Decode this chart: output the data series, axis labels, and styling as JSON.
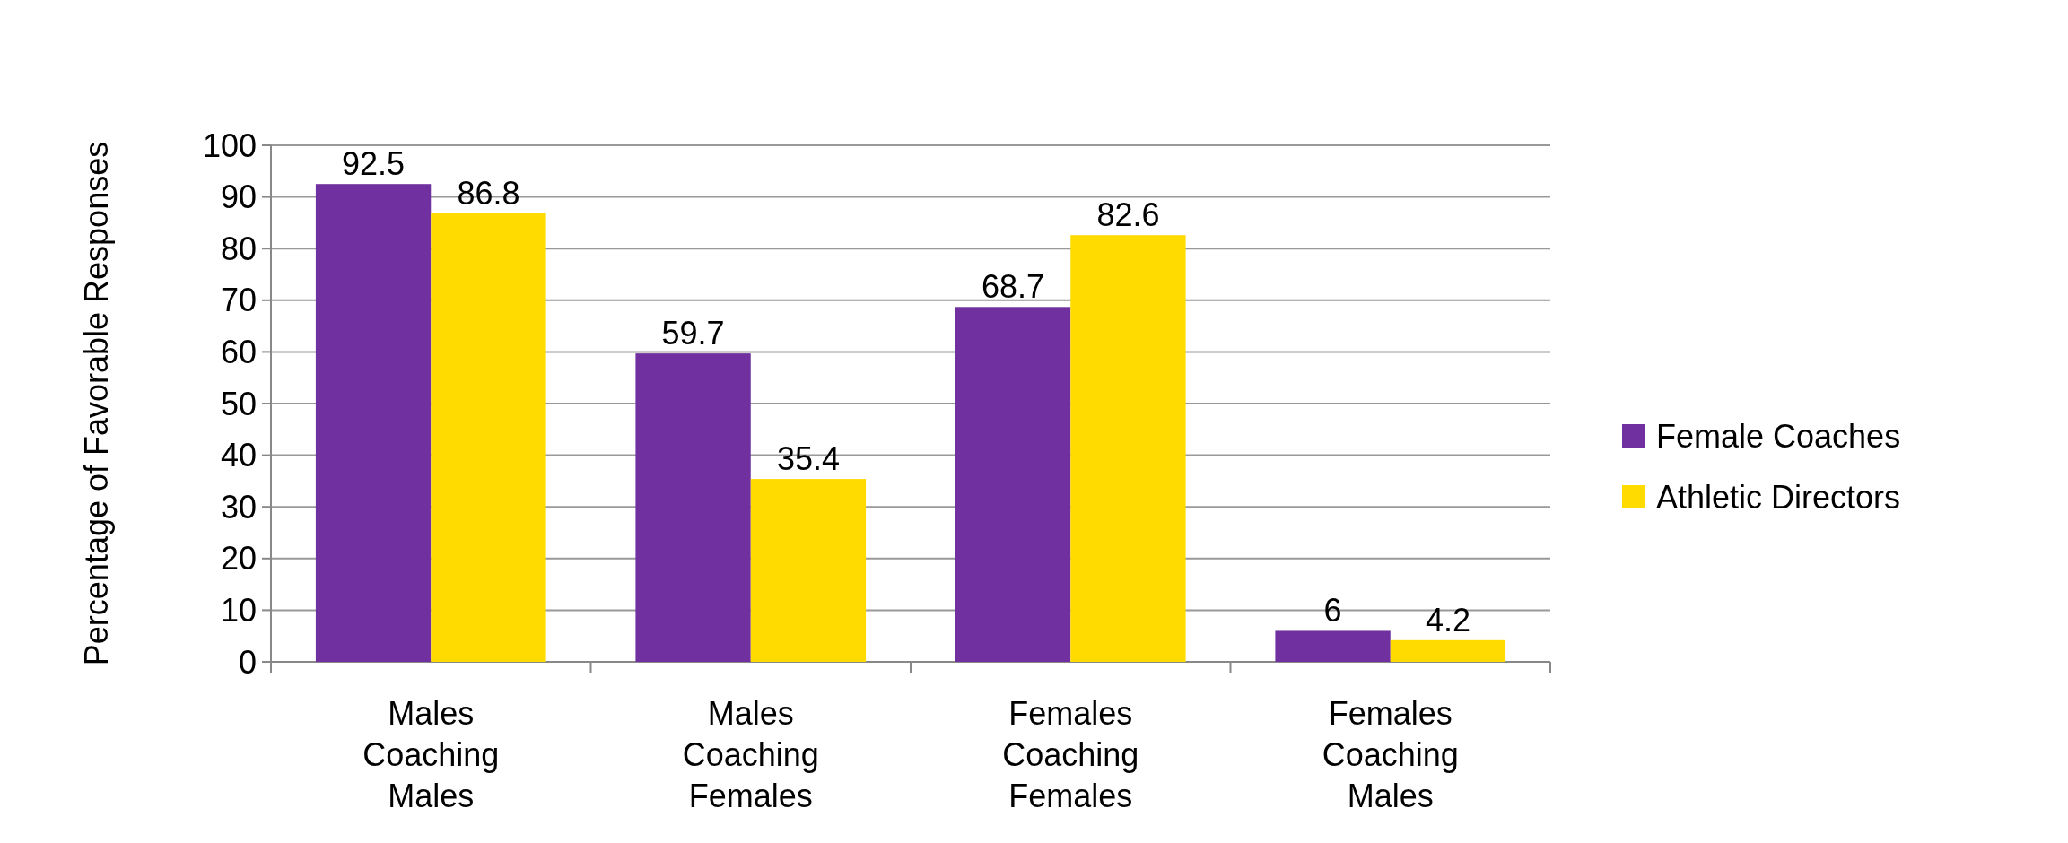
{
  "chart_data": {
    "type": "bar",
    "ylabel": "Percentage of Favorable Responses",
    "categories": [
      "Males Coaching Males",
      "Males Coaching Females",
      "Females Coaching Females",
      "Females Coaching Males"
    ],
    "series": [
      {
        "name": "Female Coaches",
        "color": "#7030a0",
        "values": [
          92.5,
          59.7,
          68.7,
          6
        ]
      },
      {
        "name": "Athletic Directors",
        "color": "#ffdb00",
        "values": [
          86.8,
          35.4,
          82.6,
          4.2
        ]
      }
    ],
    "ylim": [
      0,
      100
    ],
    "yticks": [
      0,
      10,
      20,
      30,
      40,
      50,
      60,
      70,
      80,
      90,
      100
    ],
    "grid": "y",
    "legend": "right",
    "data_labels": true
  }
}
